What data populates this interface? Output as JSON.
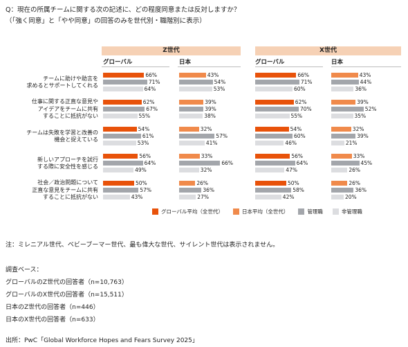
{
  "question": {
    "line1": "Q：現在の所属チームに関する次の記述に、どの程度同意または反対しますか？",
    "line2": "（「強く同意」と「やや同意」の回答のみを世代別・職階別に表示）"
  },
  "chart_data": {
    "type": "bar",
    "orientation": "horizontal",
    "unit": "%",
    "generations": [
      "Z世代",
      "X世代"
    ],
    "panels": [
      "グローバル",
      "日本"
    ],
    "statements": [
      "チームに助けや助言を求めるとサポートしてくれる",
      "仕事に関する正直な意見やアイデアをチームに共有することに抵抗がない",
      "チームは失敗を学習と改善の機会と捉えている",
      "新しいアプローチを試行する際に安全性を感じる",
      "社会／政治問題について正直な意見をチームに共有することに抵抗がない"
    ],
    "statement_lines": [
      [
        "チームに助けや助言を",
        "求めるとサポートしてくれる"
      ],
      [
        "仕事に関する正直な意見や",
        "アイデアをチームに共有",
        "することに抵抗がない"
      ],
      [
        "チームは失敗を学習と改善の",
        "機会と捉えている"
      ],
      [
        "新しいアプローチを試行",
        "する際に安全性を感じる"
      ],
      [
        "社会／政治問題について",
        "正直な意見をチームに共有",
        "することに抵抗がない"
      ]
    ],
    "series": [
      {
        "name": "グローバル平均（全世代）",
        "color": "#e8520a"
      },
      {
        "name": "日本平均（全世代）",
        "color": "#f08a4b"
      },
      {
        "name": "管理職",
        "color": "#a3a6ab"
      },
      {
        "name": "非管理職",
        "color": "#dcdde0"
      }
    ],
    "values": {
      "Z世代": {
        "グローバル": [
          [
            66,
            71,
            64
          ],
          [
            62,
            67,
            55
          ],
          [
            54,
            61,
            53
          ],
          [
            56,
            64,
            49
          ],
          [
            50,
            57,
            43
          ]
        ],
        "日本": [
          [
            43,
            54,
            53
          ],
          [
            39,
            39,
            38
          ],
          [
            32,
            57,
            41
          ],
          [
            33,
            66,
            32
          ],
          [
            26,
            36,
            27
          ]
        ]
      },
      "X世代": {
        "グローバル": [
          [
            66,
            71,
            60
          ],
          [
            62,
            70,
            55
          ],
          [
            54,
            60,
            46
          ],
          [
            56,
            64,
            47
          ],
          [
            50,
            58,
            42
          ]
        ],
        "日本": [
          [
            43,
            44,
            36
          ],
          [
            39,
            52,
            35
          ],
          [
            32,
            39,
            21
          ],
          [
            33,
            45,
            26
          ],
          [
            26,
            36,
            20
          ]
        ]
      }
    },
    "xlim": [
      0,
      100
    ]
  },
  "notes": {
    "note": "注：ミレニアル世代、ベビーブーマー世代、最も偉大な世代、サイレント世代は表示されません。",
    "base_title": "調査ベース：",
    "base_lines": [
      "グローバルのZ世代の回答者（n=10,763）",
      "グローバルのX世代の回答者（n=15,511）",
      "日本のZ世代の回答者（n=446）",
      "日本のX世代の回答者（n=633）"
    ],
    "source": "出所：PwC「Global Workforce Hopes and Fears Survey 2025」"
  }
}
